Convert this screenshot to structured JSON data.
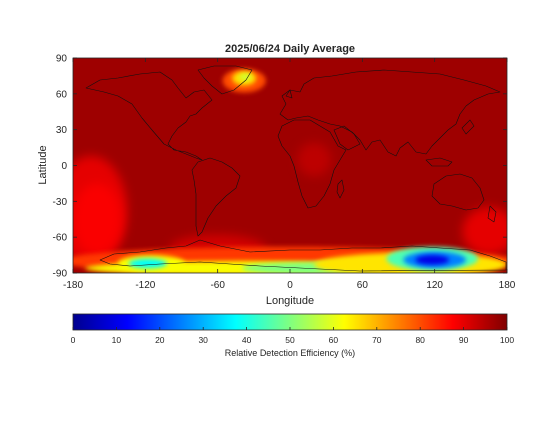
{
  "chart_data": {
    "type": "heatmap",
    "title": "2025/06/24 Daily Average",
    "xlabel": "Longitude",
    "ylabel": "Latitude",
    "xlim": [
      -180,
      180
    ],
    "ylim": [
      -90,
      90
    ],
    "x_ticks": [
      -180,
      -120,
      -60,
      0,
      60,
      120,
      180
    ],
    "x_tick_labels": [
      "-180",
      "-120",
      "-60",
      "0",
      "60",
      "120",
      "180"
    ],
    "y_ticks": [
      90,
      60,
      30,
      0,
      -30,
      -60,
      -90
    ],
    "y_tick_labels": [
      "90",
      "60",
      "30",
      "0",
      "-30",
      "-60",
      "-90"
    ],
    "colormap": "jet",
    "colorbar": {
      "label": "Relative Detection Efficiency (%)",
      "range": [
        0,
        100
      ],
      "ticks": [
        0,
        10,
        20,
        30,
        40,
        50,
        60,
        70,
        80,
        90,
        100
      ],
      "tick_labels": [
        "0",
        "10",
        "20",
        "30",
        "40",
        "50",
        "60",
        "70",
        "80",
        "90",
        "100"
      ],
      "placement": "bottom"
    },
    "background_value": 97,
    "features": [
      {
        "name": "Greenland low efficiency",
        "lon": -38,
        "lat": 72,
        "min_value": 68
      },
      {
        "name": "South Pacific reduced efficiency",
        "lon": -160,
        "lat": -40,
        "min_value": 88
      },
      {
        "name": "West Antarctica low efficiency",
        "lon": -115,
        "lat": -82,
        "min_value": 35
      },
      {
        "name": "East Antarctica low efficiency",
        "lon": 120,
        "lat": -80,
        "min_value": 10
      },
      {
        "name": "Antarctic coastal band",
        "lon": 0,
        "lat": -85,
        "min_value": 45
      }
    ],
    "grid": false,
    "coastlines": true
  }
}
